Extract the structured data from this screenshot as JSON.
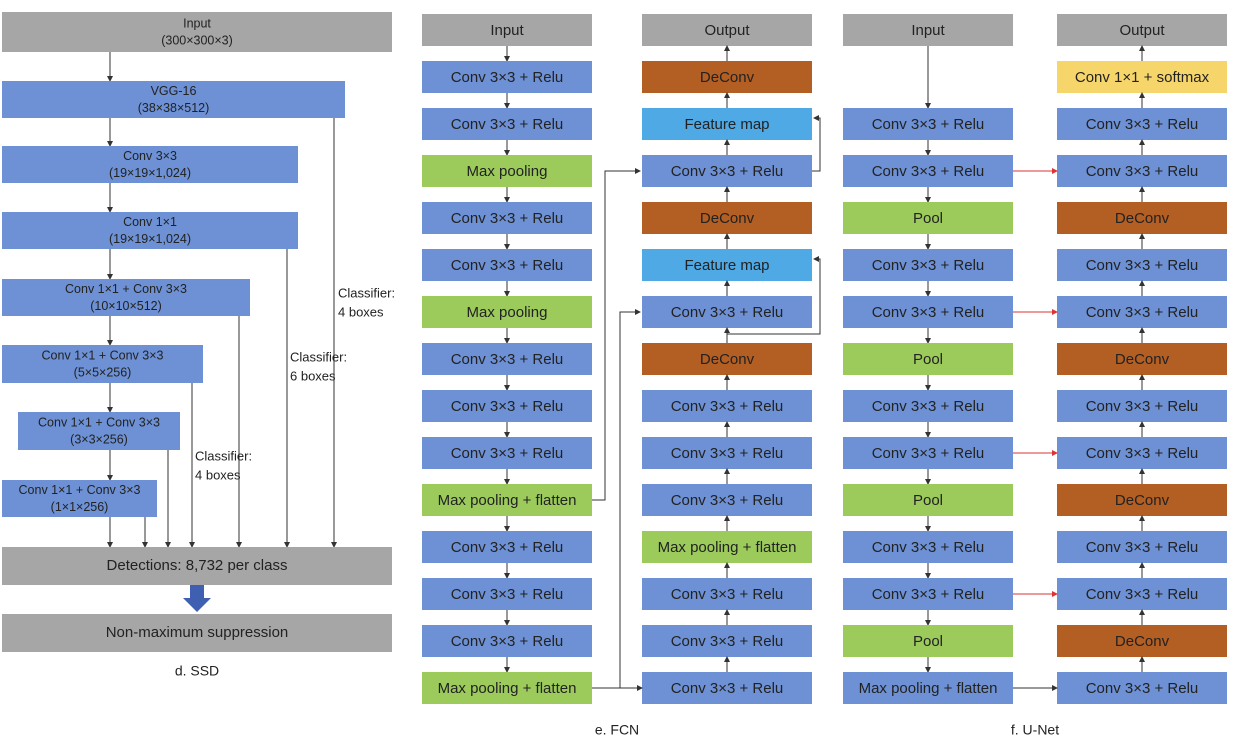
{
  "ssd": {
    "caption": "d. SSD",
    "nodes": [
      {
        "name": "Input",
        "shape": "(300×300×3)"
      },
      {
        "name": "VGG-16",
        "shape": "(38×38×512)"
      },
      {
        "name": "Conv 3×3",
        "shape": "(19×19×1,024)"
      },
      {
        "name": "Conv 1×1",
        "shape": "(19×19×1,024)"
      },
      {
        "name": "Conv 1×1 + Conv 3×3",
        "shape": "(10×10×512)"
      },
      {
        "name": "Conv 1×1 + Conv 3×3",
        "shape": "(5×5×256)"
      },
      {
        "name": "Conv 1×1 + Conv 3×3",
        "shape": "(3×3×256)"
      },
      {
        "name": "Conv 1×1 + Conv 3×3",
        "shape": "(1×1×256)"
      }
    ],
    "detections": "Detections: 8,732 per class",
    "nms": "Non-maximum suppression",
    "classifiers": [
      [
        "Classifier:",
        "4 boxes"
      ],
      [
        "Classifier:",
        "6 boxes"
      ],
      [
        "Classifier:",
        "4 boxes"
      ]
    ]
  },
  "fcn": {
    "caption": "e. FCN",
    "left": [
      "Input",
      "Conv 3×3 + Relu",
      "Conv 3×3 + Relu",
      "Max pooling",
      "Conv 3×3 + Relu",
      "Conv 3×3 + Relu",
      "Max pooling",
      "Conv 3×3 + Relu",
      "Conv 3×3 + Relu",
      "Conv 3×3 + Relu",
      "Max pooling + flatten",
      "Conv 3×3 + Relu",
      "Conv 3×3 + Relu",
      "Conv 3×3 + Relu",
      "Max pooling + flatten"
    ],
    "right": [
      "Output",
      "DeConv",
      "Feature map",
      "Conv 3×3 + Relu",
      "DeConv",
      "Feature map",
      "Conv 3×3 + Relu",
      "DeConv",
      "Conv 3×3 + Relu",
      "Conv 3×3 + Relu",
      "Conv 3×3 + Relu",
      "Max pooling + flatten",
      "Conv 3×3 + Relu",
      "Conv 3×3 + Relu",
      "Conv 3×3 + Relu"
    ]
  },
  "unet": {
    "caption": "f. U-Net",
    "left": [
      "Input",
      "Conv 3×3 + Relu",
      "Conv 3×3 + Relu",
      "Pool",
      "Conv 3×3 + Relu",
      "Conv 3×3 + Relu",
      "Pool",
      "Conv 3×3 + Relu",
      "Conv 3×3 + Relu",
      "Pool",
      "Conv 3×3 + Relu",
      "Conv 3×3 + Relu",
      "Pool",
      "Max pooling + flatten"
    ],
    "right": [
      "Output",
      "Conv 1×1 + softmax",
      "Conv 3×3 + Relu",
      "Conv 3×3 + Relu",
      "DeConv",
      "Conv 3×3 + Relu",
      "Conv 3×3 + Relu",
      "DeConv",
      "Conv 3×3 + Relu",
      "Conv 3×3 + Relu",
      "DeConv",
      "Conv 3×3 + Relu",
      "Conv 3×3 + Relu",
      "DeConv",
      "Conv 3×3 + Relu"
    ]
  }
}
